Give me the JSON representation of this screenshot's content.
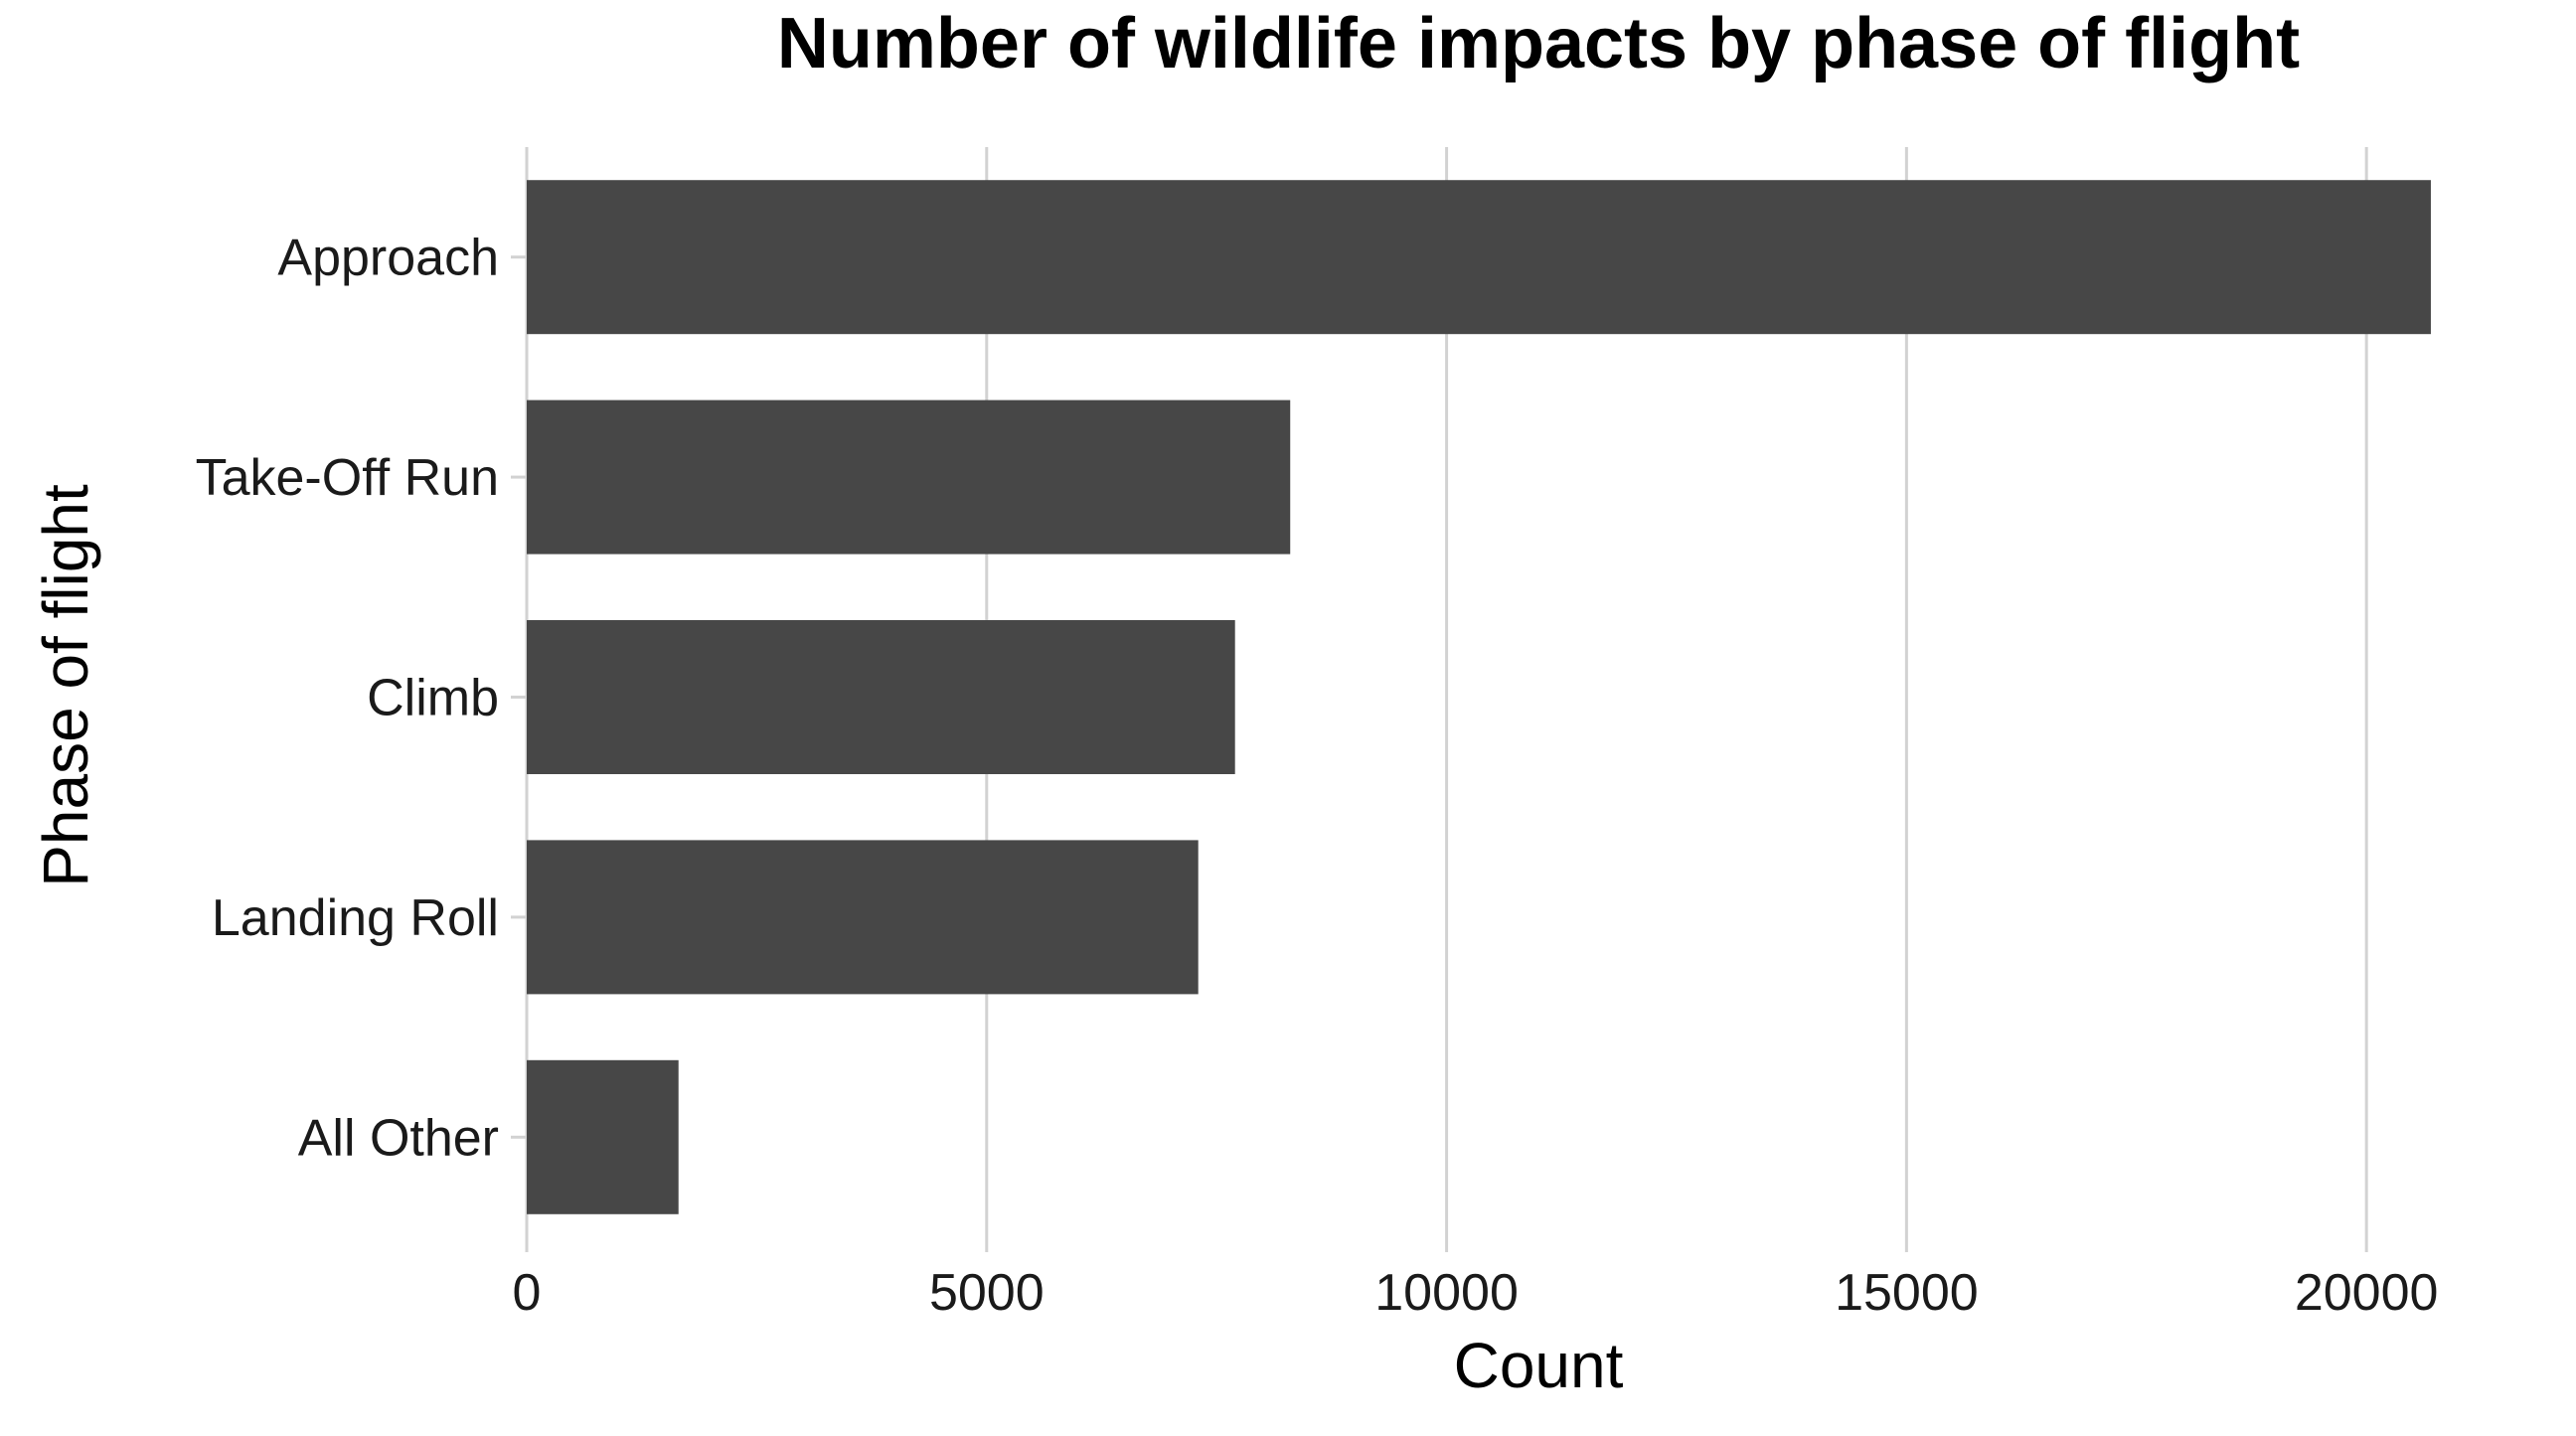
{
  "chart_data": {
    "type": "bar",
    "orientation": "horizontal",
    "title": "Number of wildlife impacts by phase of flight",
    "xlabel": "Count",
    "ylabel": "Phase of flight",
    "categories": [
      "Approach",
      "Take-Off Run",
      "Climb",
      "Landing Roll",
      "All Other"
    ],
    "values": [
      20700,
      8300,
      7700,
      7300,
      1650
    ],
    "xlim": [
      0,
      21500
    ],
    "xticks": [
      0,
      5000,
      10000,
      15000,
      20000
    ],
    "xtick_labels": [
      "0",
      "5000",
      "10000",
      "15000",
      "20000"
    ],
    "grid": true,
    "legend": "none",
    "bar_color": "#474747",
    "grid_color": "#d2d2d2"
  }
}
